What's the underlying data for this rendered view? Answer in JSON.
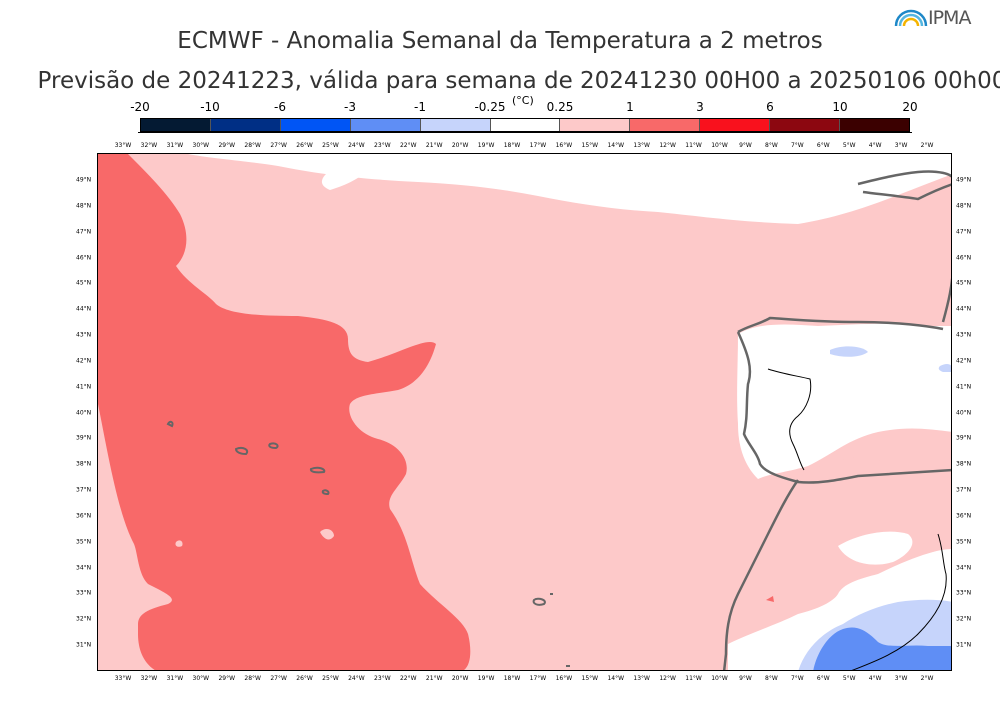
{
  "title": "ECMWF - Anomalia Semanal da Temperatura a 2 metros",
  "subtitle": "Previsão de 20241223, válida para semana de 20241230 00H00 a 20250106 00h00",
  "logo_text": "IPMA",
  "colorbar": {
    "unit": "(°C)",
    "ticks": [
      "-20",
      "-10",
      "-6",
      "-3",
      "-1",
      "-0.25",
      "0.25",
      "1",
      "3",
      "6",
      "10",
      "20"
    ],
    "colors": [
      "#041a33",
      "#002f85",
      "#0055f5",
      "#5f8ef5",
      "#c6d4fb",
      "#ffffff",
      "#fdc9c9",
      "#f86969",
      "#f9111d",
      "#8c0710",
      "#3b0000"
    ]
  },
  "map": {
    "longitude_labels": [
      "33°W",
      "32°W",
      "31°W",
      "30°W",
      "29°W",
      "28°W",
      "27°W",
      "26°W",
      "25°W",
      "24°W",
      "23°W",
      "22°W",
      "21°W",
      "20°W",
      "19°W",
      "18°W",
      "17°W",
      "16°W",
      "15°W",
      "14°W",
      "13°W",
      "12°W",
      "11°W",
      "10°W",
      "9°W",
      "8°W",
      "7°W",
      "6°W",
      "5°W",
      "4°W",
      "3°W",
      "2°W"
    ],
    "latitude_labels": [
      "49°N",
      "48°N",
      "47°N",
      "46°N",
      "45°N",
      "44°N",
      "43°N",
      "42°N",
      "41°N",
      "40°N",
      "39°N",
      "38°N",
      "37°N",
      "36°N",
      "35°N",
      "34°N",
      "33°N",
      "32°N",
      "31°N"
    ],
    "lon_range": [
      -34,
      -1
    ],
    "lat_range": [
      30,
      50
    ],
    "regions": [
      {
        "name": "atlantic-warm-anomaly",
        "range": "1 to 3",
        "color": "#f86969"
      },
      {
        "name": "background-anomaly",
        "range": "0.25 to 1",
        "color": "#fdc9c9"
      },
      {
        "name": "near-zero-anomaly",
        "range": "-0.25 to 0.25",
        "color": "#ffffff"
      },
      {
        "name": "north-africa-cold-anomaly",
        "range": "-3 to -0.25",
        "color": "#c6d4fb"
      }
    ]
  }
}
